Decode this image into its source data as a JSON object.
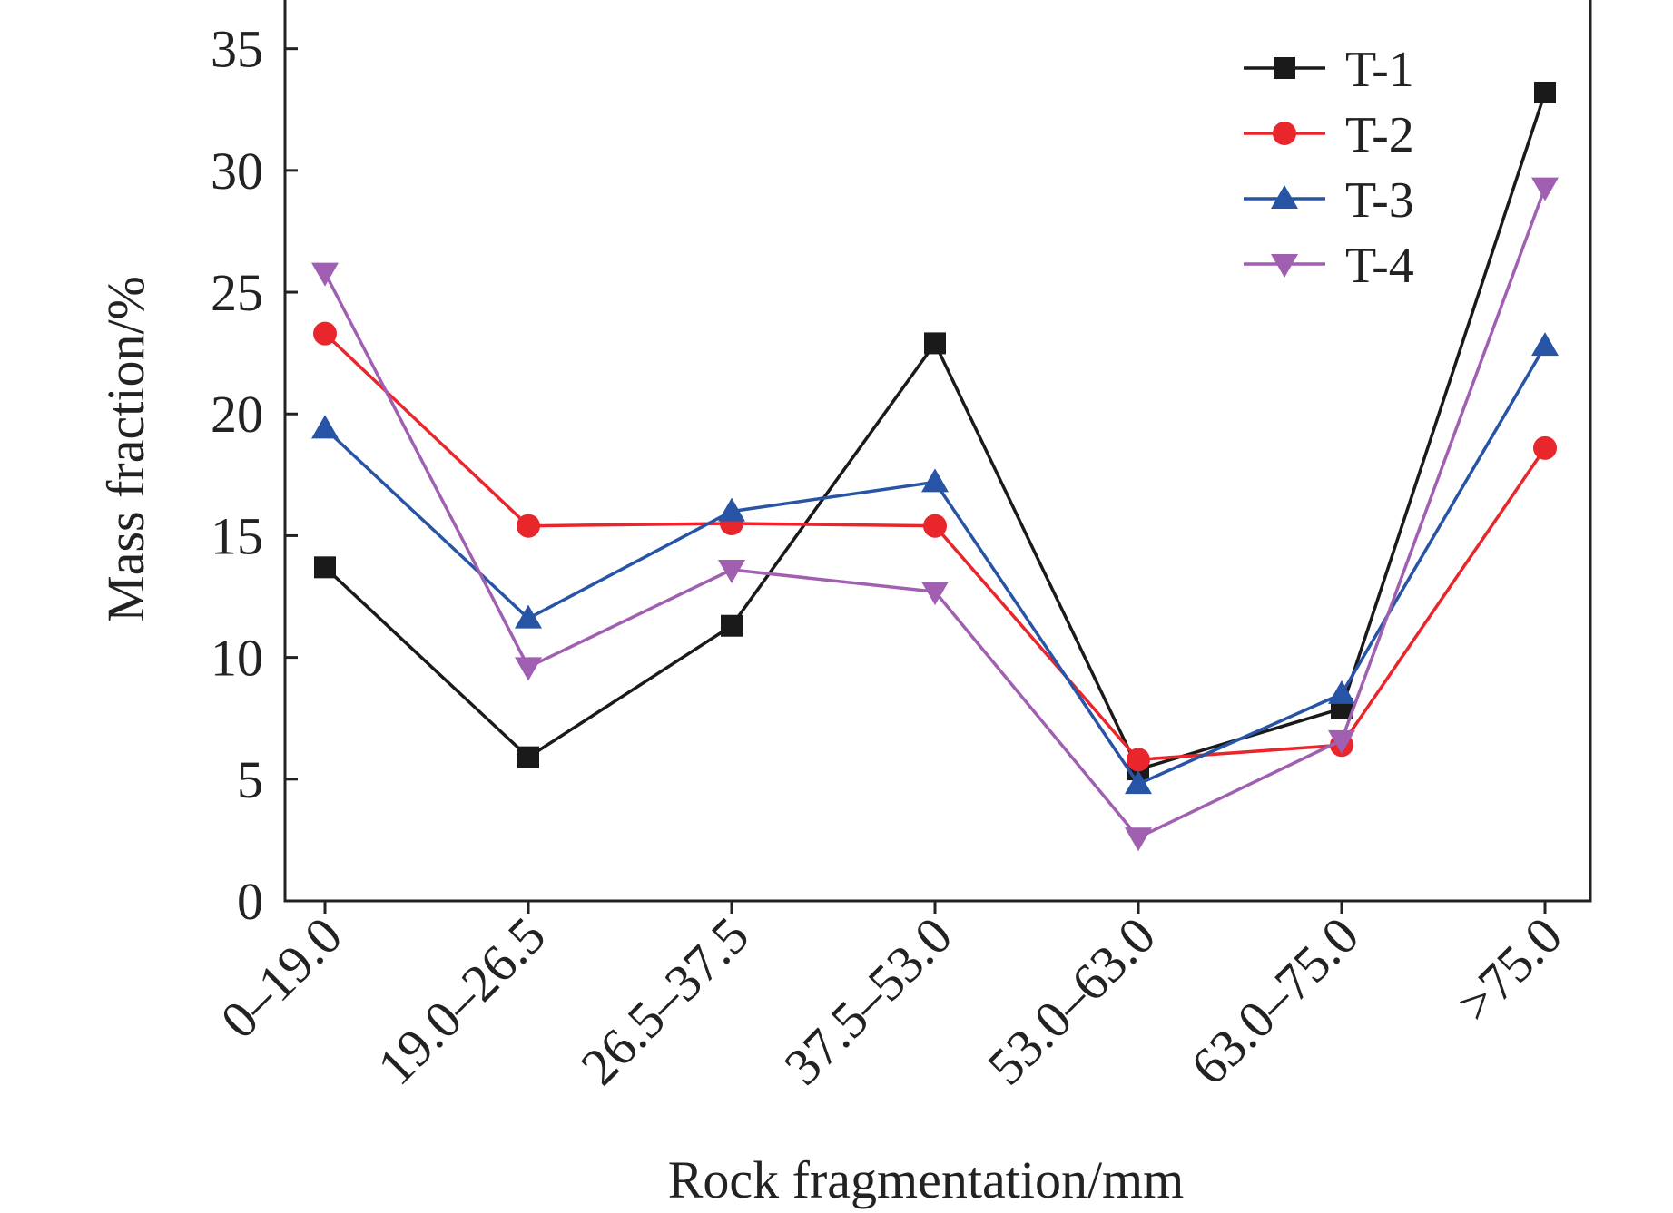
{
  "chart_data": {
    "type": "line",
    "title": "",
    "xlabel": "Rock fragmentation/mm",
    "ylabel": "Mass fraction/%",
    "categories": [
      "0–19.0",
      "19.0–26.5",
      "26.5–37.5",
      "37.5–53.0",
      "53.0–63.0",
      "63.0–75.0",
      ">75.0"
    ],
    "ylim": [
      0,
      37
    ],
    "yticks": [
      0,
      5,
      10,
      15,
      20,
      25,
      30,
      35
    ],
    "grid": false,
    "legend_position": "top-right",
    "series": [
      {
        "name": "T-1",
        "color": "#1a1a1a",
        "marker": "square",
        "values": [
          13.7,
          5.9,
          11.3,
          22.9,
          5.4,
          7.9,
          33.2
        ]
      },
      {
        "name": "T-2",
        "color": "#e8262b",
        "marker": "circle",
        "values": [
          23.3,
          15.4,
          15.5,
          15.4,
          5.8,
          6.4,
          18.6
        ]
      },
      {
        "name": "T-3",
        "color": "#2854a6",
        "marker": "triangle-up",
        "values": [
          19.4,
          11.6,
          16.0,
          17.2,
          4.8,
          8.5,
          22.8
        ]
      },
      {
        "name": "T-4",
        "color": "#a05fb0",
        "marker": "triangle-down",
        "values": [
          25.8,
          9.6,
          13.6,
          12.7,
          2.6,
          6.6,
          29.3
        ]
      }
    ]
  }
}
